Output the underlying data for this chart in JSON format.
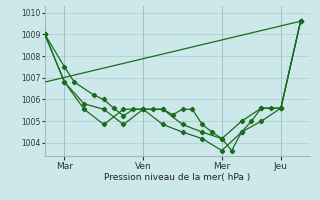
{
  "background_color": "#cce8ea",
  "grid_color": "#aacccc",
  "line_color": "#1a6b1a",
  "ylabel": "Pression niveau de la mer( hPa )",
  "ylim": [
    1003.4,
    1010.3
  ],
  "yticks": [
    1004,
    1005,
    1006,
    1007,
    1008,
    1009,
    1010
  ],
  "xtick_labels": [
    "Mar",
    "Ven",
    "Mer",
    "Jeu"
  ],
  "xtick_positions": [
    2,
    10,
    18,
    24
  ],
  "xlim": [
    0,
    27
  ],
  "series_straight": [
    [
      0,
      1006.8
    ],
    [
      26,
      1009.6
    ]
  ],
  "series1": {
    "x": [
      0,
      2,
      4,
      6,
      8,
      10,
      12,
      14,
      16,
      18,
      20,
      22,
      24,
      26
    ],
    "y": [
      1009.0,
      1006.8,
      1005.55,
      1004.85,
      1005.55,
      1005.55,
      1004.85,
      1004.5,
      1004.2,
      1003.65,
      1004.5,
      1005.0,
      1005.6,
      1009.6
    ]
  },
  "series2": {
    "x": [
      0,
      2,
      4,
      6,
      8,
      10,
      12,
      14,
      16,
      18,
      20,
      22,
      24,
      26
    ],
    "y": [
      1009.0,
      1006.8,
      1005.8,
      1005.55,
      1004.85,
      1005.55,
      1005.55,
      1004.85,
      1004.5,
      1004.2,
      1005.0,
      1005.6,
      1005.6,
      1009.6
    ]
  },
  "series3": {
    "x": [
      0,
      2,
      3,
      5,
      6,
      7,
      8,
      9,
      10,
      11,
      12,
      13,
      14,
      15,
      16,
      17,
      18,
      19,
      20,
      21,
      22,
      23,
      24,
      26
    ],
    "y": [
      1009.0,
      1007.5,
      1006.8,
      1006.2,
      1006.0,
      1005.6,
      1005.25,
      1005.55,
      1005.55,
      1005.55,
      1005.55,
      1005.3,
      1005.55,
      1005.55,
      1004.85,
      1004.5,
      1004.2,
      1003.65,
      1004.5,
      1005.0,
      1005.6,
      1005.6,
      1005.6,
      1009.6
    ]
  }
}
